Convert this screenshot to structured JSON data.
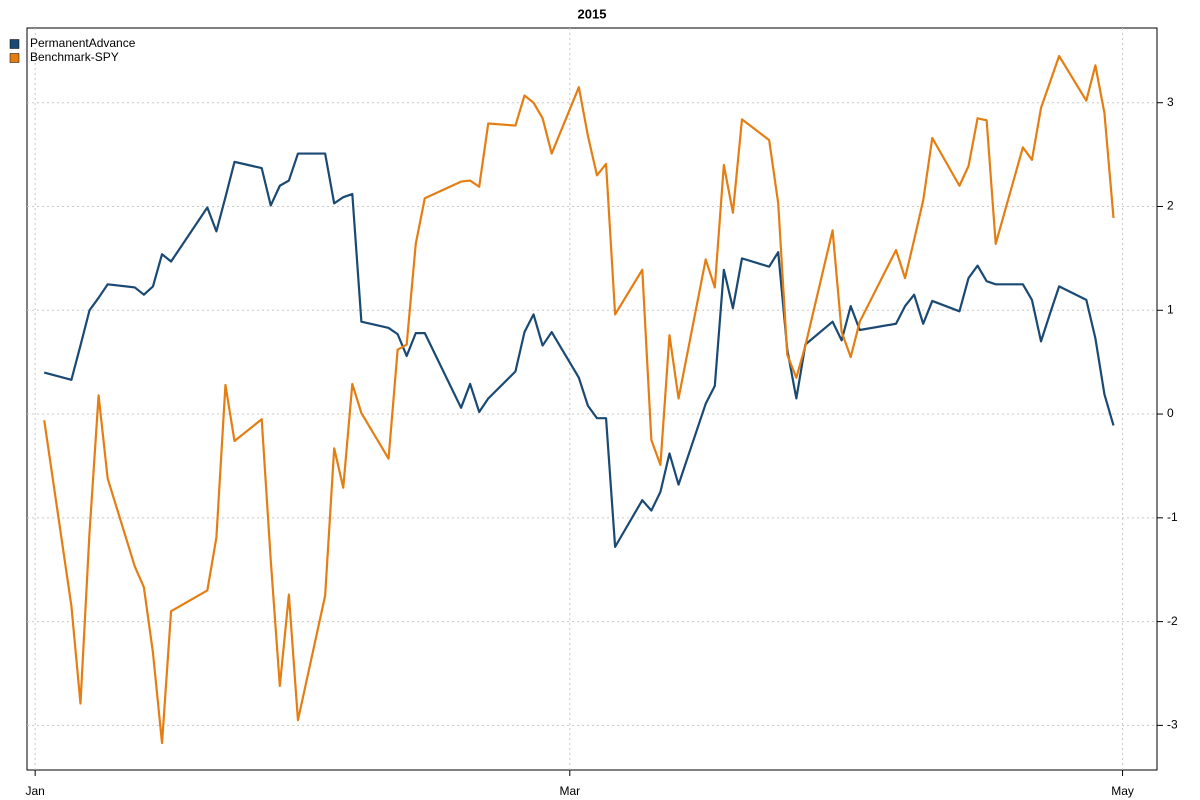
{
  "chart_data": {
    "type": "line",
    "title": "2015",
    "x": [
      1,
      4,
      5,
      6,
      7,
      8,
      11,
      12,
      13,
      14,
      15,
      19,
      20,
      21,
      22,
      25,
      26,
      27,
      28,
      29,
      32,
      33,
      34,
      35,
      36,
      39,
      40,
      41,
      42,
      43,
      47,
      48,
      49,
      50,
      53,
      54,
      55,
      56,
      57,
      60,
      61,
      62,
      63,
      64,
      67,
      68,
      69,
      70,
      71,
      74,
      75,
      76,
      77,
      78,
      81,
      82,
      83,
      84,
      85,
      88,
      89,
      90,
      91,
      95,
      96,
      97,
      98,
      99,
      102,
      103,
      104,
      105,
      106,
      109,
      110,
      111,
      112,
      113,
      116,
      117,
      118,
      119
    ],
    "series": [
      {
        "name": "PermanentAdvance",
        "color": "#1a4a73",
        "values": [
          0.4,
          0.33,
          0.66,
          1.0,
          1.12,
          1.25,
          1.22,
          1.15,
          1.23,
          1.54,
          1.47,
          1.99,
          1.76,
          2.09,
          2.43,
          2.37,
          2.01,
          2.2,
          2.25,
          2.51,
          2.51,
          2.03,
          2.09,
          2.12,
          0.89,
          0.83,
          0.77,
          0.56,
          0.78,
          0.78,
          0.06,
          0.29,
          0.02,
          0.15,
          0.41,
          0.79,
          0.96,
          0.66,
          0.79,
          0.35,
          0.08,
          -0.04,
          -0.04,
          -1.28,
          -0.83,
          -0.93,
          -0.75,
          -0.38,
          -0.68,
          0.1,
          0.27,
          1.39,
          1.02,
          1.5,
          1.42,
          1.56,
          0.62,
          0.15,
          0.67,
          0.89,
          0.71,
          1.04,
          0.81,
          0.87,
          1.04,
          1.15,
          0.87,
          1.09,
          0.99,
          1.31,
          1.43,
          1.28,
          1.25,
          1.25,
          1.1,
          0.7,
          0.97,
          1.23,
          1.1,
          0.73,
          0.19,
          -0.11
        ]
      },
      {
        "name": "Benchmark-SPY",
        "color": "#e57e12",
        "values": [
          -0.06,
          -1.85,
          -2.79,
          -1.14,
          0.18,
          -0.62,
          -1.47,
          -1.67,
          -2.3,
          -3.17,
          -1.9,
          -1.7,
          -1.19,
          0.28,
          -0.26,
          -0.05,
          -1.41,
          -2.62,
          -1.74,
          -2.95,
          -1.75,
          -0.33,
          -0.71,
          0.29,
          0.01,
          -0.43,
          0.62,
          0.67,
          1.64,
          2.08,
          2.24,
          2.25,
          2.19,
          2.8,
          2.78,
          3.07,
          3.0,
          2.85,
          2.51,
          3.15,
          2.68,
          2.3,
          2.41,
          0.96,
          1.39,
          -0.25,
          -0.49,
          0.76,
          0.15,
          1.49,
          1.22,
          2.4,
          1.94,
          2.84,
          2.64,
          2.03,
          0.57,
          0.35,
          0.66,
          1.77,
          0.79,
          0.55,
          0.89,
          1.58,
          1.31,
          1.68,
          2.06,
          2.66,
          2.2,
          2.39,
          2.85,
          2.83,
          1.64,
          2.57,
          2.45,
          2.95,
          3.2,
          3.45,
          3.02,
          3.36,
          2.9,
          1.89
        ]
      }
    ],
    "xlim": [
      -0.9,
      123.8
    ],
    "xticks": [
      {
        "value": 0,
        "label": "Jan"
      },
      {
        "value": 59,
        "label": "Mar"
      },
      {
        "value": 120,
        "label": "May"
      }
    ],
    "ylim": [
      -3.43,
      3.72
    ],
    "yticks": [
      -3,
      -2,
      -1,
      0,
      1,
      2,
      3
    ],
    "y_axis_side": "right",
    "grid": true,
    "legend": "top-left"
  }
}
